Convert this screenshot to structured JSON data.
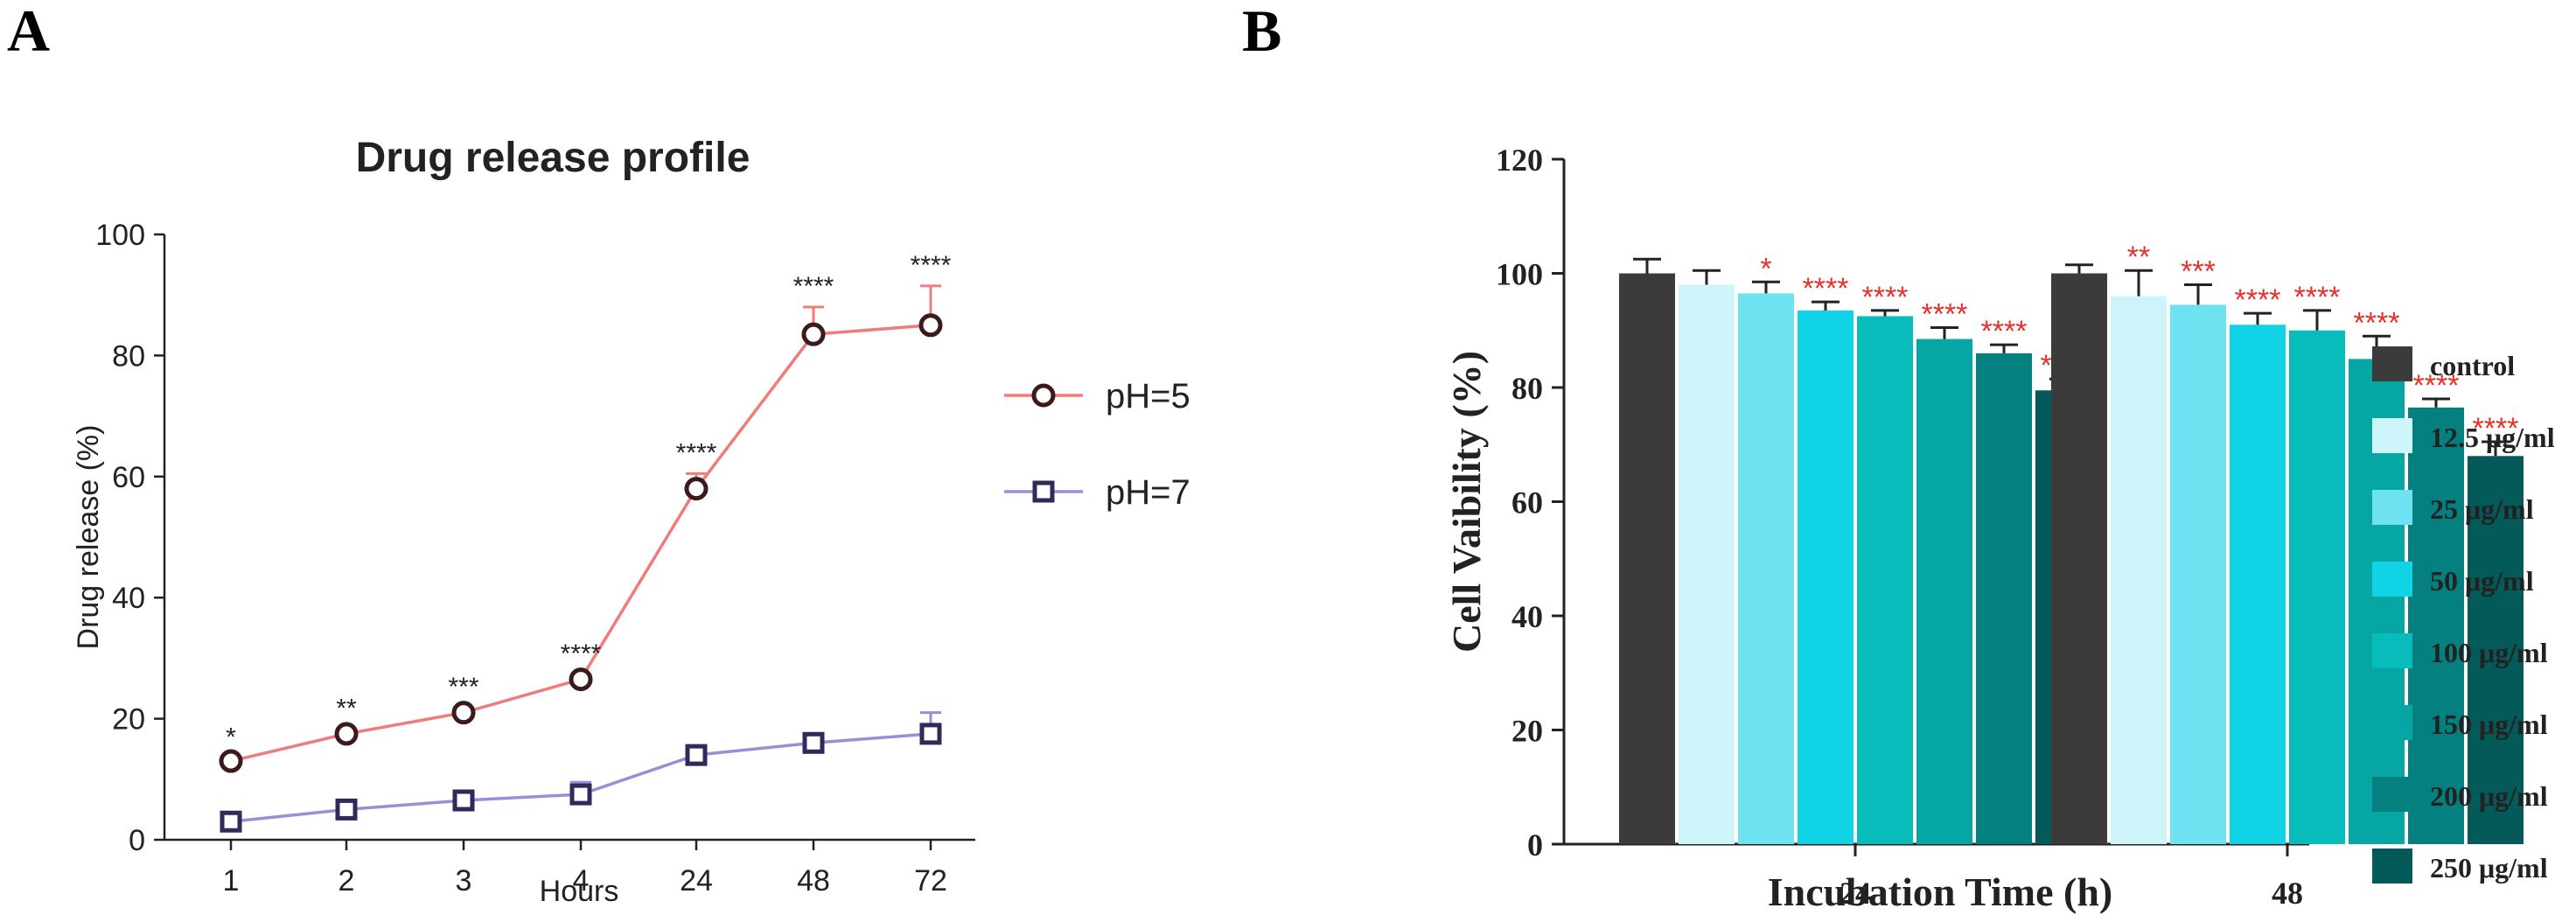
{
  "panel_labels": {
    "a": "A",
    "b": "B"
  },
  "chart_data": [
    {
      "type": "line",
      "title": "Drug release profile",
      "xlabel": "Hours",
      "ylabel": "Drug release (%)",
      "categories": [
        "1",
        "2",
        "3",
        "4",
        "24",
        "48",
        "72"
      ],
      "ylim": [
        0,
        100
      ],
      "yticks": [
        0,
        20,
        40,
        60,
        80,
        100
      ],
      "legend_position": "top-right",
      "series": [
        {
          "name": "pH=5",
          "color": "#f07b7b",
          "marker": "circle",
          "values": [
            13,
            17.5,
            21,
            26.5,
            58,
            83.5,
            85
          ],
          "errors": [
            0.5,
            0.8,
            0.8,
            0.8,
            2.5,
            4.5,
            6.5
          ]
        },
        {
          "name": "pH=7",
          "color": "#9a8fd6",
          "marker": "square",
          "values": [
            3,
            5,
            6.5,
            7.5,
            14,
            16,
            17.5
          ],
          "errors": [
            0.8,
            0.5,
            1.5,
            2.0,
            1.0,
            1.0,
            3.5
          ]
        }
      ],
      "significance": [
        "*",
        "**",
        "***",
        "****",
        "****",
        "****",
        "****"
      ]
    },
    {
      "type": "bar",
      "xlabel": "Incubation Time (h)",
      "ylabel": "Cell Vaibility (%)",
      "categories": [
        "24",
        "48"
      ],
      "ylim": [
        0,
        120
      ],
      "yticks": [
        0,
        20,
        40,
        60,
        80,
        100,
        120
      ],
      "legend_position": "right",
      "series": [
        {
          "name": "control",
          "color": "#3b3b3b",
          "values": [
            100,
            100
          ],
          "errors": [
            2.5,
            1.5
          ],
          "stars": [
            "",
            ""
          ]
        },
        {
          "name": "12.5 μg/ml",
          "color": "#cdf5fa",
          "values": [
            98,
            96
          ],
          "errors": [
            2.5,
            4.5
          ],
          "stars": [
            "",
            "**"
          ]
        },
        {
          "name": "25 μg/ml",
          "color": "#6fe2f2",
          "values": [
            96.5,
            94.5
          ],
          "errors": [
            2.0,
            3.5
          ],
          "stars": [
            "*",
            "***"
          ]
        },
        {
          "name": "50 μg/ml",
          "color": "#10d4e6",
          "values": [
            93.5,
            91
          ],
          "errors": [
            1.5,
            2.0
          ],
          "stars": [
            "****",
            "****"
          ]
        },
        {
          "name": "100 μg/ml",
          "color": "#08bcbc",
          "values": [
            92.5,
            90
          ],
          "errors": [
            1.0,
            3.5
          ],
          "stars": [
            "****",
            "****"
          ]
        },
        {
          "name": "150 μg/ml",
          "color": "#06a6a4",
          "values": [
            88.5,
            85
          ],
          "errors": [
            2.0,
            4.0
          ],
          "stars": [
            "****",
            "****"
          ]
        },
        {
          "name": "200 μg/ml",
          "color": "#058080",
          "values": [
            86,
            76.5
          ],
          "errors": [
            1.5,
            1.5
          ],
          "stars": [
            "****",
            "****"
          ]
        },
        {
          "name": "250 μg/ml",
          "color": "#045a58",
          "values": [
            79.5,
            68
          ],
          "errors": [
            2.0,
            2.5
          ],
          "stars": [
            "****",
            "****"
          ]
        }
      ]
    }
  ]
}
